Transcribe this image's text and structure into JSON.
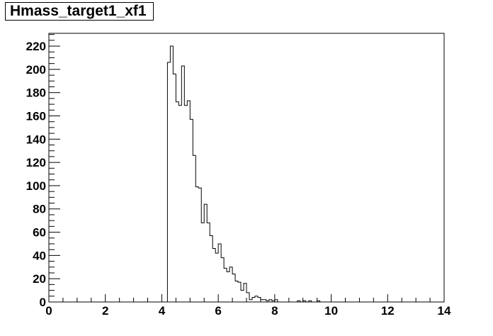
{
  "chart_data": {
    "type": "histogram",
    "title": "Hmass_target1_xf1",
    "xlabel": "",
    "ylabel": "",
    "xlim": [
      0,
      14
    ],
    "ylim": [
      0,
      231
    ],
    "bin_width": 0.1,
    "x_ticks": [
      "0",
      "2",
      "4",
      "6",
      "8",
      "10",
      "12",
      "14"
    ],
    "y_ticks": [
      "0",
      "20",
      "40",
      "60",
      "80",
      "100",
      "120",
      "140",
      "160",
      "180",
      "200",
      "220"
    ],
    "series": [
      {
        "values": [
          {
            "x": 4.2,
            "y": 206
          },
          {
            "x": 4.3,
            "y": 220
          },
          {
            "x": 4.4,
            "y": 196
          },
          {
            "x": 4.5,
            "y": 172
          },
          {
            "x": 4.6,
            "y": 169
          },
          {
            "x": 4.7,
            "y": 203
          },
          {
            "x": 4.8,
            "y": 169
          },
          {
            "x": 4.9,
            "y": 173
          },
          {
            "x": 5.0,
            "y": 157
          },
          {
            "x": 5.1,
            "y": 126
          },
          {
            "x": 5.2,
            "y": 99
          },
          {
            "x": 5.3,
            "y": 98
          },
          {
            "x": 5.4,
            "y": 68
          },
          {
            "x": 5.5,
            "y": 84
          },
          {
            "x": 5.6,
            "y": 68
          },
          {
            "x": 5.7,
            "y": 57
          },
          {
            "x": 5.8,
            "y": 46
          },
          {
            "x": 5.9,
            "y": 42
          },
          {
            "x": 6.0,
            "y": 50
          },
          {
            "x": 6.1,
            "y": 38
          },
          {
            "x": 6.2,
            "y": 29
          },
          {
            "x": 6.3,
            "y": 26
          },
          {
            "x": 6.4,
            "y": 30
          },
          {
            "x": 6.5,
            "y": 24
          },
          {
            "x": 6.6,
            "y": 18
          },
          {
            "x": 6.7,
            "y": 17
          },
          {
            "x": 6.8,
            "y": 10
          },
          {
            "x": 6.9,
            "y": 16
          },
          {
            "x": 7.0,
            "y": 8
          },
          {
            "x": 7.1,
            "y": 2
          },
          {
            "x": 7.2,
            "y": 4
          },
          {
            "x": 7.3,
            "y": 5
          },
          {
            "x": 7.4,
            "y": 4
          },
          {
            "x": 7.5,
            "y": 2
          },
          {
            "x": 7.6,
            "y": 2
          },
          {
            "x": 7.7,
            "y": 1
          },
          {
            "x": 7.8,
            "y": 2
          },
          {
            "x": 7.9,
            "y": 1
          },
          {
            "x": 8.0,
            "y": 2
          },
          {
            "x": 8.8,
            "y": 1
          },
          {
            "x": 9.0,
            "y": 1
          },
          {
            "x": 9.2,
            "y": 1
          },
          {
            "x": 9.5,
            "y": 1
          }
        ]
      }
    ],
    "grid": false,
    "legend": "none"
  }
}
